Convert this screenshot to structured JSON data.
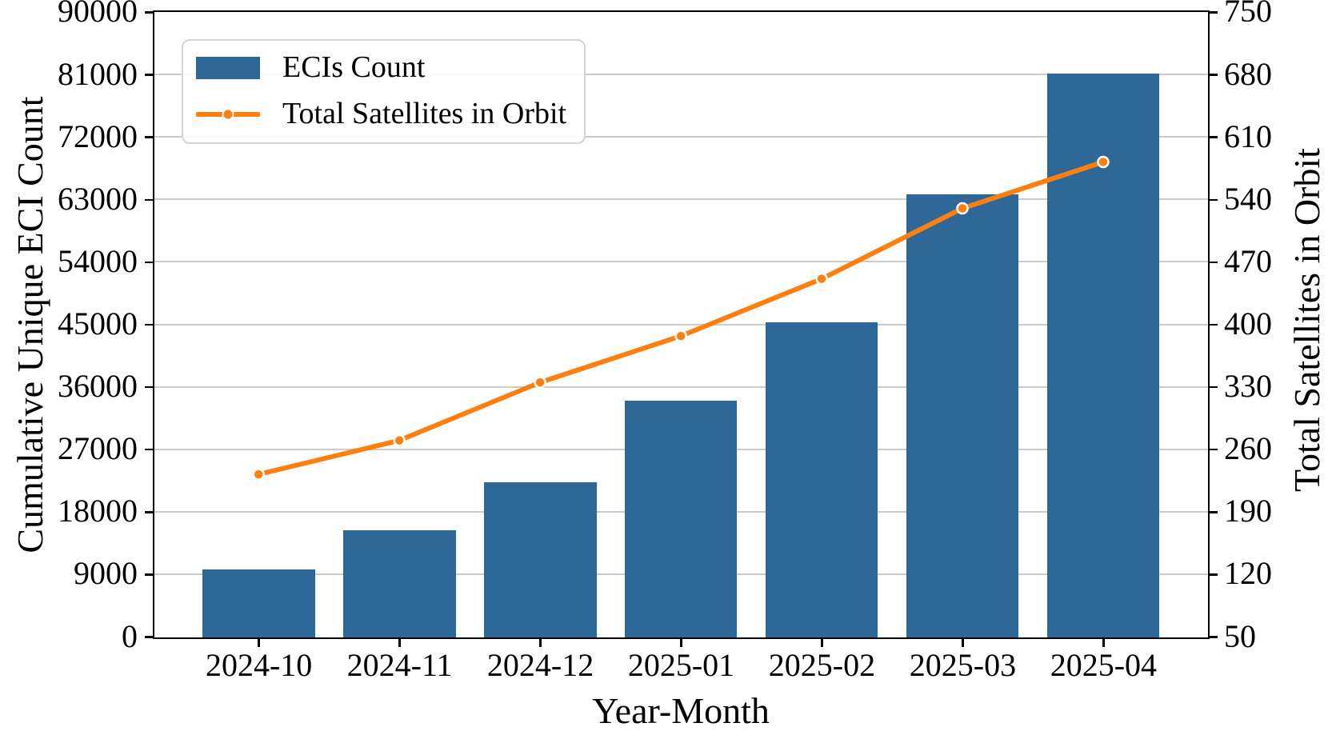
{
  "figure": {
    "xlabel": "Year-Month",
    "ylabel_left": "Cumulative Unique ECI Count",
    "ylabel_right": "Total Satellites in Orbit"
  },
  "legend": {
    "bar_label": "ECIs Count",
    "line_label": "Total Satellites in Orbit"
  },
  "colors": {
    "bar": "#2d6899",
    "line": "#ff7f0e",
    "marker_edge": "#ffffff",
    "grid": "#cbcbcb",
    "spine": "#000000",
    "legend_border": "#d4d4d4",
    "background": "#ffffff"
  },
  "chart_data": {
    "type": "bar",
    "categories": [
      "2024-10",
      "2024-11",
      "2024-12",
      "2025-01",
      "2025-02",
      "2025-03",
      "2025-04"
    ],
    "series": [
      {
        "name": "ECIs Count",
        "type": "bar",
        "axis": "left",
        "values": [
          9800,
          15400,
          22400,
          34100,
          45400,
          63800,
          81200
        ]
      },
      {
        "name": "Total Satellites in Orbit",
        "type": "line",
        "axis": "right",
        "values": [
          232,
          270,
          335,
          387,
          451,
          530,
          582
        ]
      }
    ],
    "title": "",
    "xlabel": "Year-Month",
    "ylabel_left": "Cumulative Unique ECI Count",
    "ylabel_right": "Total Satellites in Orbit",
    "ylim_left": [
      0,
      90000
    ],
    "ylim_right": [
      50,
      750
    ],
    "yticks_left": [
      0,
      9000,
      18000,
      27000,
      36000,
      45000,
      54000,
      63000,
      72000,
      81000,
      90000
    ],
    "yticks_right": [
      50,
      120,
      190,
      260,
      330,
      400,
      470,
      540,
      610,
      680,
      750
    ],
    "grid": true,
    "gridlines_below_bars": true,
    "legend_position": "upper left",
    "bar_width_fraction": 0.8,
    "x_pad_units": 0.74
  }
}
